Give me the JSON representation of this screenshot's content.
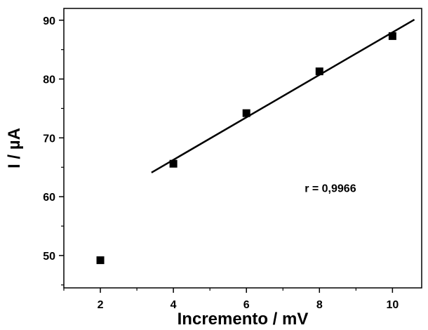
{
  "chart_data": {
    "type": "scatter",
    "title": "",
    "xlabel": "Incremento / mV",
    "ylabel": "I / µA",
    "xlim": [
      1,
      10.8
    ],
    "ylim": [
      44.5,
      92
    ],
    "x_major_ticks": [
      2,
      4,
      6,
      8,
      10
    ],
    "x_minor_ticks": [
      1,
      3,
      5,
      7,
      9
    ],
    "y_major_ticks": [
      50,
      60,
      70,
      80,
      90
    ],
    "y_minor_ticks": [
      45,
      55,
      65,
      75,
      85
    ],
    "x_tick_labels": [
      "2",
      "4",
      "6",
      "8",
      "10"
    ],
    "y_tick_labels": [
      "50",
      "60",
      "70",
      "80",
      "90"
    ],
    "grid": false,
    "legend": "none",
    "series": [
      {
        "marker": "square",
        "color": "#000000",
        "x": [
          2,
          4,
          6,
          8,
          10
        ],
        "y": [
          49.2,
          65.6,
          74.2,
          81.3,
          87.3
        ]
      }
    ],
    "fit_line": {
      "color": "#000000",
      "x": [
        3.4,
        10.6
      ],
      "y": [
        64.1,
        90.1
      ]
    },
    "annotations": [
      {
        "text": "r = 0,9966",
        "x": 8.3,
        "y": 61.5
      }
    ]
  }
}
